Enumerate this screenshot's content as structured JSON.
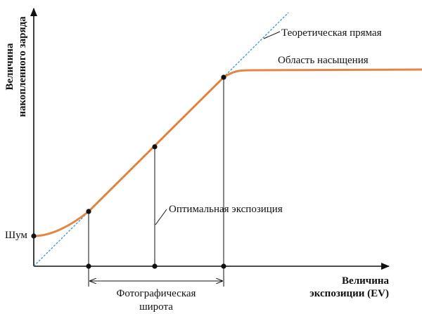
{
  "y_axis": {
    "label_line1": "Величина",
    "label_line2": "накопленного заряда"
  },
  "x_axis": {
    "label_line1": "Величина",
    "label_line2": "экспозиции (EV)"
  },
  "labels": {
    "theoretical_line": "Теоретическая прямая",
    "saturation": "Область насыщения",
    "optimal_exposure": "Оптимальная экспозиция",
    "noise": "Шум",
    "latitude_line1": "Фотографическая",
    "latitude_line2": "широта"
  },
  "colors": {
    "response_curve": "#e07a30",
    "theoretical_line": "#2a8fc4",
    "axis": "#111111"
  }
}
